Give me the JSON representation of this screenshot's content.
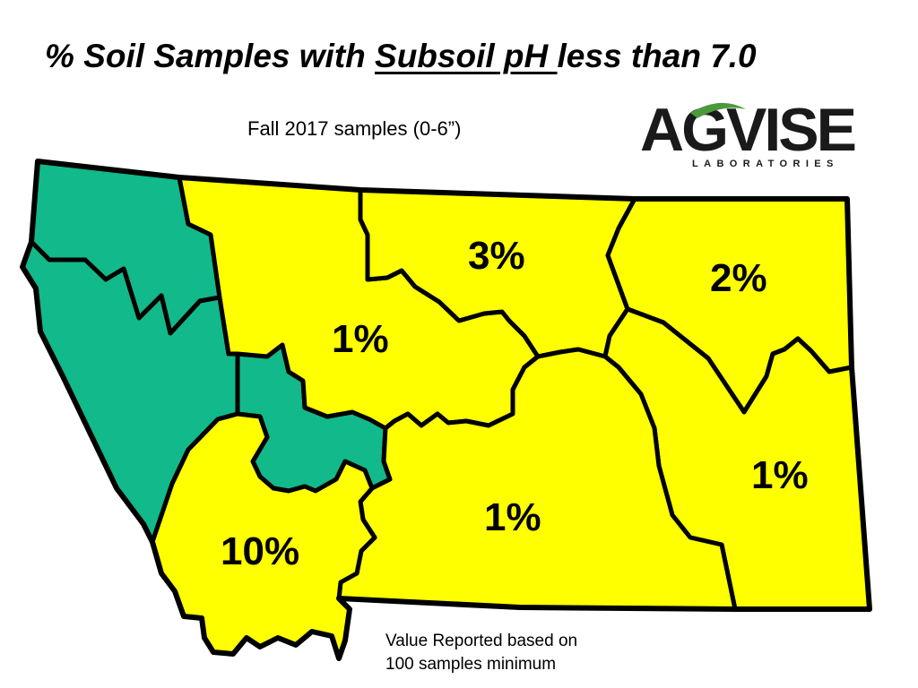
{
  "title": {
    "prefix": "% Soil Samples with ",
    "underlined": "Subsoil pH ",
    "suffix": "less than 7.0"
  },
  "subtitle": "Fall 2017 samples (0-6”)",
  "logo": {
    "brand": "AGVISE",
    "subtext": "LABORATORIES",
    "colors": {
      "dark": "#1a1a1a",
      "green": "#4a9a3c"
    }
  },
  "map": {
    "state": "Montana",
    "colors": {
      "acidic_region": "#12b98a",
      "other_region": "#ffff00",
      "border": "#000000"
    },
    "regions": [
      {
        "id": "northwest",
        "value_label": "",
        "color": "#12b98a"
      },
      {
        "id": "west-central",
        "value_label": "",
        "color": "#12b98a"
      },
      {
        "id": "north-central-west",
        "value_label": "1%",
        "color": "#ffff00"
      },
      {
        "id": "north-central",
        "value_label": "3%",
        "color": "#ffff00"
      },
      {
        "id": "northeast",
        "value_label": "2%",
        "color": "#ffff00"
      },
      {
        "id": "east",
        "value_label": "1%",
        "color": "#ffff00"
      },
      {
        "id": "south-central",
        "value_label": "1%",
        "color": "#ffff00"
      },
      {
        "id": "southwest",
        "value_label": "10%",
        "color": "#ffff00"
      }
    ]
  },
  "note": {
    "line1": "Value Reported based on",
    "line2": "100 samples minimum"
  }
}
